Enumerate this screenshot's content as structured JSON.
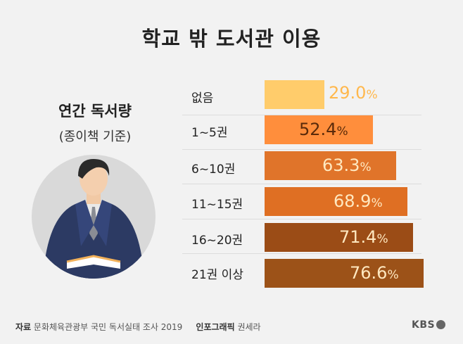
{
  "title": "학교 밖 도서관 이용",
  "subtitle": {
    "line1": "연간 독서량",
    "line2": "(종이책 기준)"
  },
  "footer": {
    "source_label": "자료",
    "source_text": "문화체육관광부 국민 독서실태 조사 2019",
    "credit_label": "인포그래픽",
    "credit_name": "권세라"
  },
  "logo": {
    "text": "KBS"
  },
  "colors": {
    "background": "#f2f2f2",
    "bars": [
      "#ffcc6b",
      "#ff8e3c",
      "#e0742a",
      "#df6f23",
      "#9b4c16",
      "#9c5218"
    ],
    "values": [
      "#ffb84d",
      "#5a2a0a",
      "#ffe8c0",
      "#ffe8c0",
      "#ffe8c0",
      "#ffe8c0"
    ]
  },
  "chart_data": {
    "type": "bar",
    "orientation": "horizontal",
    "categories": [
      "없음",
      "1~5권",
      "6~10권",
      "11~15권",
      "16~20권",
      "21권 이상"
    ],
    "values": [
      29.0,
      52.4,
      63.3,
      68.9,
      71.4,
      76.6
    ],
    "value_labels": [
      "29.0",
      "52.4",
      "63.3",
      "68.9",
      "71.4",
      "76.6"
    ],
    "unit": "%"
  }
}
